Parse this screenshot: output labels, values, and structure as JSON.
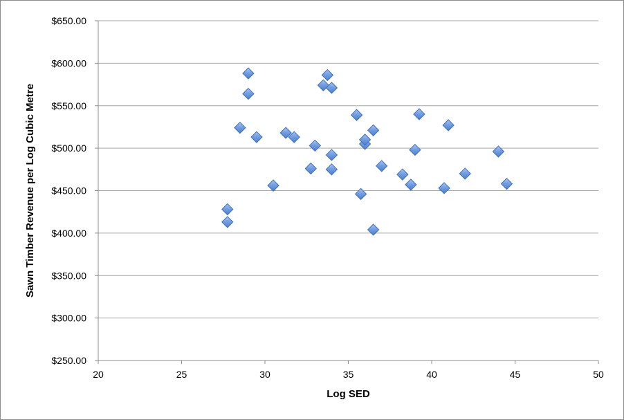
{
  "chart_data": {
    "type": "scatter",
    "xlabel": "Log SED",
    "ylabel": "Sawn Timber Revenue per Log Cubic Metre",
    "xlim": [
      20,
      50
    ],
    "ylim": [
      250,
      650
    ],
    "x_ticks": [
      "20",
      "25",
      "30",
      "35",
      "40",
      "45",
      "50"
    ],
    "y_ticks": [
      "$250.00",
      "$300.00",
      "$350.00",
      "$400.00",
      "$450.00",
      "$500.00",
      "$550.00",
      "$600.00",
      "$650.00"
    ],
    "grid": "horizontal",
    "legend": "none",
    "marker_color": "#6f9be0",
    "marker_edge": "#3e6fb6",
    "points": [
      {
        "x": 27.75,
        "y": 428
      },
      {
        "x": 27.75,
        "y": 413
      },
      {
        "x": 28.5,
        "y": 524
      },
      {
        "x": 29.0,
        "y": 588
      },
      {
        "x": 29.0,
        "y": 564
      },
      {
        "x": 29.5,
        "y": 513
      },
      {
        "x": 30.5,
        "y": 456
      },
      {
        "x": 31.25,
        "y": 518
      },
      {
        "x": 31.75,
        "y": 513
      },
      {
        "x": 32.75,
        "y": 476
      },
      {
        "x": 33.0,
        "y": 503
      },
      {
        "x": 33.5,
        "y": 574
      },
      {
        "x": 33.75,
        "y": 586
      },
      {
        "x": 34.0,
        "y": 571
      },
      {
        "x": 34.0,
        "y": 492
      },
      {
        "x": 34.0,
        "y": 475
      },
      {
        "x": 35.5,
        "y": 539
      },
      {
        "x": 35.75,
        "y": 446
      },
      {
        "x": 36.0,
        "y": 505
      },
      {
        "x": 36.0,
        "y": 510
      },
      {
        "x": 36.5,
        "y": 521
      },
      {
        "x": 36.5,
        "y": 404
      },
      {
        "x": 37.0,
        "y": 479
      },
      {
        "x": 38.25,
        "y": 469
      },
      {
        "x": 38.75,
        "y": 457
      },
      {
        "x": 39.0,
        "y": 498
      },
      {
        "x": 39.25,
        "y": 540
      },
      {
        "x": 40.75,
        "y": 453
      },
      {
        "x": 41.0,
        "y": 527
      },
      {
        "x": 42.0,
        "y": 470
      },
      {
        "x": 44.0,
        "y": 496
      },
      {
        "x": 44.5,
        "y": 458
      }
    ]
  }
}
